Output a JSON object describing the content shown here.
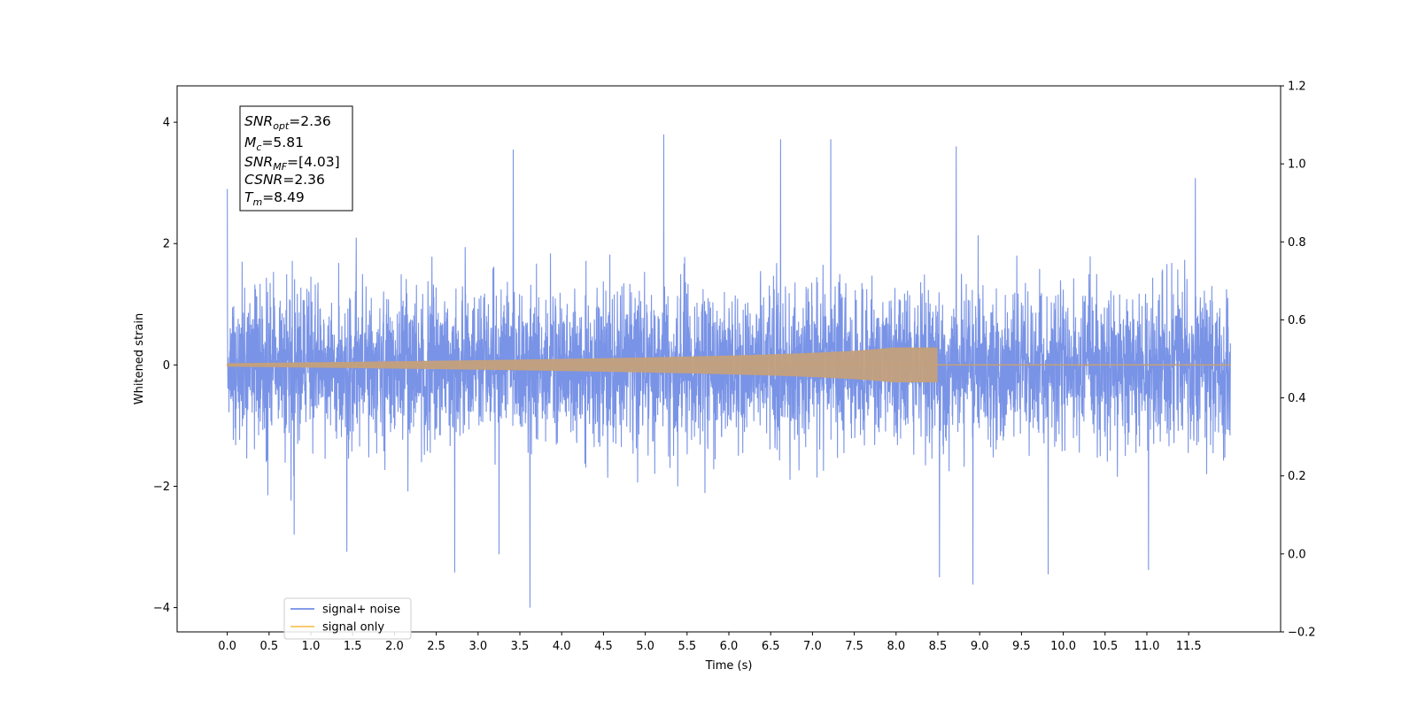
{
  "chart_data": {
    "type": "line",
    "xlabel": "Time (s)",
    "ylabel": "Whitened strain",
    "xlim": [
      -0.6,
      12.6
    ],
    "ylim": [
      -4.4,
      4.6
    ],
    "y2lim": [
      -0.2,
      1.2
    ],
    "xticks": [
      "0.0",
      "0.5",
      "1.0",
      "1.5",
      "2.0",
      "2.5",
      "3.0",
      "3.5",
      "4.0",
      "4.5",
      "5.0",
      "5.5",
      "6.0",
      "6.5",
      "7.0",
      "7.5",
      "8.0",
      "8.5",
      "9.0",
      "9.5",
      "10.0",
      "10.5",
      "11.0",
      "11.5"
    ],
    "yticks": [
      "4",
      "2",
      "0",
      "−2",
      "−4"
    ],
    "y2ticks": [
      "1.2",
      "1.0",
      "0.8",
      "0.6",
      "0.4",
      "0.2",
      "0.0",
      "−0.2"
    ],
    "grid": false,
    "legend_position": "lower-left",
    "series": [
      {
        "name": "signal+ noise",
        "color": "#5b7be0",
        "x_range": [
          0.0,
          12.0
        ],
        "std": 0.62,
        "max": 3.8,
        "min": -4.0,
        "peaks": [
          {
            "x": 0.0,
            "y": 2.9
          },
          {
            "x": 3.42,
            "y": 3.55
          },
          {
            "x": 5.22,
            "y": 3.8
          },
          {
            "x": 6.62,
            "y": 3.72
          },
          {
            "x": 7.22,
            "y": 3.72
          },
          {
            "x": 8.72,
            "y": 3.6
          },
          {
            "x": 11.58,
            "y": 3.08
          },
          {
            "x": 3.62,
            "y": -4.0
          },
          {
            "x": 1.43,
            "y": -3.08
          },
          {
            "x": 2.72,
            "y": -3.42
          },
          {
            "x": 8.92,
            "y": -3.62
          },
          {
            "x": 8.52,
            "y": -3.5
          },
          {
            "x": 9.82,
            "y": -3.45
          },
          {
            "x": 11.02,
            "y": -3.38
          },
          {
            "x": 0.8,
            "y": -2.8
          },
          {
            "x": 3.25,
            "y": -3.12
          }
        ]
      },
      {
        "name": "signal only",
        "color": "#f5b842",
        "x_range": [
          0.0,
          12.0
        ],
        "chirp_end": 8.49,
        "peak_amplitude": 0.28
      }
    ],
    "annotation": {
      "lines": [
        {
          "sym": "SNR",
          "sub": "opt",
          "value": "=2.36"
        },
        {
          "sym": "M",
          "sub": "c",
          "value": "=5.81"
        },
        {
          "sym": "SNR",
          "sub": "MF",
          "value": "=[4.03]"
        },
        {
          "sym": "CSNR",
          "sub": "",
          "value": "=2.36"
        },
        {
          "sym": "T",
          "sub": "m",
          "value": "=8.49"
        }
      ]
    }
  }
}
